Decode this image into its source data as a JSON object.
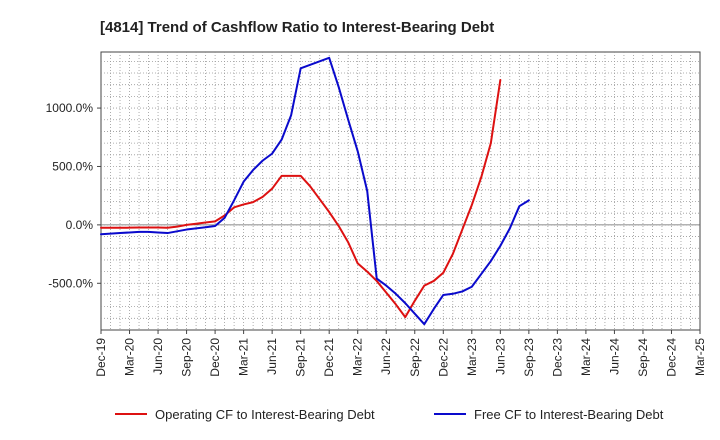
{
  "chart_data": {
    "type": "line",
    "title": "[4814]  Trend of Cashflow Ratio to Interest-Bearing Debt",
    "xlabel": "",
    "ylabel": "",
    "x_labels": [
      "Dec-19",
      "Mar-20",
      "Jun-20",
      "Sep-20",
      "Dec-20",
      "Mar-21",
      "Jun-21",
      "Sep-21",
      "Dec-21",
      "Mar-22",
      "Jun-22",
      "Sep-22",
      "Dec-22",
      "Mar-23",
      "Jun-23",
      "Sep-23",
      "Dec-23",
      "Mar-24",
      "Jun-24",
      "Sep-24",
      "Dec-24",
      "Mar-25"
    ],
    "x_minor_per_major": 3,
    "ylim": [
      -900,
      1480
    ],
    "y_ticks": [
      -500,
      0,
      500,
      1000
    ],
    "y_tick_labels": [
      "-500.0%",
      "0.0%",
      "500.0%",
      "1000.0%"
    ],
    "grid": true,
    "legend_position": "bottom",
    "series": [
      {
        "name": "Operating CF to Interest-Bearing Debt",
        "color": "#dd1111",
        "values": [
          -25,
          -25,
          -25,
          -24,
          -23,
          -22,
          -22,
          -25,
          -15,
          0,
          10,
          20,
          30,
          80,
          150,
          175,
          195,
          240,
          310,
          420,
          420,
          420,
          330,
          220,
          110,
          -10,
          -150,
          -330,
          -400,
          -480,
          -580,
          -680,
          -790,
          -650,
          -520,
          -480,
          -410,
          -250,
          -40,
          170,
          410,
          700,
          1240
        ]
      },
      {
        "name": "Free CF to Interest-Bearing Debt",
        "color": "#0a0acc",
        "values": [
          -80,
          -75,
          -70,
          -65,
          -60,
          -60,
          -65,
          -70,
          -55,
          -40,
          -30,
          -20,
          -10,
          60,
          210,
          370,
          470,
          550,
          610,
          730,
          940,
          1340,
          1370,
          1400,
          1430,
          1180,
          900,
          630,
          290,
          -460,
          -520,
          -590,
          -670,
          -760,
          -850,
          -720,
          -600,
          -590,
          -570,
          -530,
          -420,
          -310,
          -180,
          -30,
          160,
          210
        ]
      }
    ]
  }
}
